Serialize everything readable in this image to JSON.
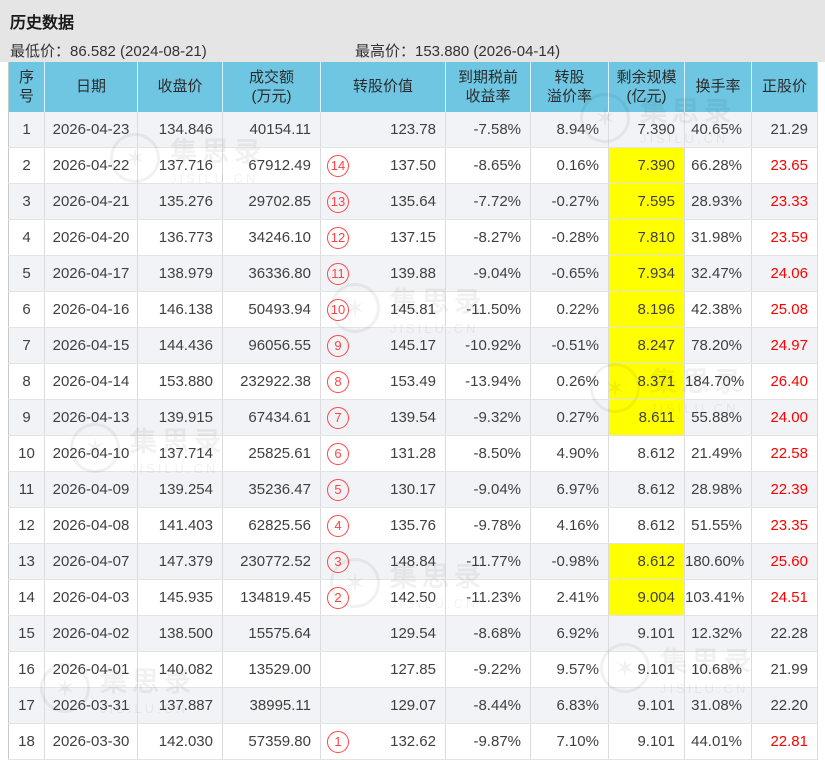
{
  "header": {
    "title": "历史数据",
    "min_price_label": "最低价：86.582 (2024-08-21)",
    "max_price_label": "最高价：153.880 (2026-04-14)"
  },
  "watermark": {
    "brand": "集思录",
    "domain": "JISILU.CN",
    "logo_glyph": "✶"
  },
  "table": {
    "columns": [
      {
        "key": "no",
        "label": "序\n号"
      },
      {
        "key": "date",
        "label": "日期"
      },
      {
        "key": "close",
        "label": "收盘价"
      },
      {
        "key": "volume",
        "label": "成交额\n(万元)"
      },
      {
        "key": "conv_value",
        "label": "转股价值"
      },
      {
        "key": "ytm",
        "label": "到期税前\n收益率"
      },
      {
        "key": "premium",
        "label": "转股\n溢价率"
      },
      {
        "key": "size",
        "label": "剩余规模\n(亿元)"
      },
      {
        "key": "turnover",
        "label": "换手率"
      },
      {
        "key": "price",
        "label": "正股价"
      }
    ],
    "rows": [
      {
        "no": "1",
        "date": "2026-04-23",
        "close": "134.846",
        "volume": "40154.11",
        "badge": "",
        "conv_value": "123.78",
        "ytm": "-7.58%",
        "premium": "8.94%",
        "size": "7.390",
        "size_highlight": false,
        "turnover": "40.65%",
        "price": "21.29",
        "price_red": false
      },
      {
        "no": "2",
        "date": "2026-04-22",
        "close": "137.716",
        "volume": "67912.49",
        "badge": "14",
        "conv_value": "137.50",
        "ytm": "-8.65%",
        "premium": "0.16%",
        "size": "7.390",
        "size_highlight": true,
        "turnover": "66.28%",
        "price": "23.65",
        "price_red": true
      },
      {
        "no": "3",
        "date": "2026-04-21",
        "close": "135.276",
        "volume": "29702.85",
        "badge": "13",
        "conv_value": "135.64",
        "ytm": "-7.72%",
        "premium": "-0.27%",
        "size": "7.595",
        "size_highlight": true,
        "turnover": "28.93%",
        "price": "23.33",
        "price_red": true
      },
      {
        "no": "4",
        "date": "2026-04-20",
        "close": "136.773",
        "volume": "34246.10",
        "badge": "12",
        "conv_value": "137.15",
        "ytm": "-8.27%",
        "premium": "-0.28%",
        "size": "7.810",
        "size_highlight": true,
        "turnover": "31.98%",
        "price": "23.59",
        "price_red": true
      },
      {
        "no": "5",
        "date": "2026-04-17",
        "close": "138.979",
        "volume": "36336.80",
        "badge": "11",
        "conv_value": "139.88",
        "ytm": "-9.04%",
        "premium": "-0.65%",
        "size": "7.934",
        "size_highlight": true,
        "turnover": "32.47%",
        "price": "24.06",
        "price_red": true
      },
      {
        "no": "6",
        "date": "2026-04-16",
        "close": "146.138",
        "volume": "50493.94",
        "badge": "10",
        "conv_value": "145.81",
        "ytm": "-11.50%",
        "premium": "0.22%",
        "size": "8.196",
        "size_highlight": true,
        "turnover": "42.38%",
        "price": "25.08",
        "price_red": true
      },
      {
        "no": "7",
        "date": "2026-04-15",
        "close": "144.436",
        "volume": "96056.55",
        "badge": "9",
        "conv_value": "145.17",
        "ytm": "-10.92%",
        "premium": "-0.51%",
        "size": "8.247",
        "size_highlight": true,
        "turnover": "78.20%",
        "price": "24.97",
        "price_red": true
      },
      {
        "no": "8",
        "date": "2026-04-14",
        "close": "153.880",
        "volume": "232922.38",
        "badge": "8",
        "conv_value": "153.49",
        "ytm": "-13.94%",
        "premium": "0.26%",
        "size": "8.371",
        "size_highlight": true,
        "turnover": "184.70%",
        "price": "26.40",
        "price_red": true
      },
      {
        "no": "9",
        "date": "2026-04-13",
        "close": "139.915",
        "volume": "67434.61",
        "badge": "7",
        "conv_value": "139.54",
        "ytm": "-9.32%",
        "premium": "0.27%",
        "size": "8.611",
        "size_highlight": true,
        "turnover": "55.88%",
        "price": "24.00",
        "price_red": true
      },
      {
        "no": "10",
        "date": "2026-04-10",
        "close": "137.714",
        "volume": "25825.61",
        "badge": "6",
        "conv_value": "131.28",
        "ytm": "-8.50%",
        "premium": "4.90%",
        "size": "8.612",
        "size_highlight": false,
        "turnover": "21.49%",
        "price": "22.58",
        "price_red": true
      },
      {
        "no": "11",
        "date": "2026-04-09",
        "close": "139.254",
        "volume": "35236.47",
        "badge": "5",
        "conv_value": "130.17",
        "ytm": "-9.04%",
        "premium": "6.97%",
        "size": "8.612",
        "size_highlight": false,
        "turnover": "28.98%",
        "price": "22.39",
        "price_red": true
      },
      {
        "no": "12",
        "date": "2026-04-08",
        "close": "141.403",
        "volume": "62825.56",
        "badge": "4",
        "conv_value": "135.76",
        "ytm": "-9.78%",
        "premium": "4.16%",
        "size": "8.612",
        "size_highlight": false,
        "turnover": "51.55%",
        "price": "23.35",
        "price_red": true
      },
      {
        "no": "13",
        "date": "2026-04-07",
        "close": "147.379",
        "volume": "230772.52",
        "badge": "3",
        "conv_value": "148.84",
        "ytm": "-11.77%",
        "premium": "-0.98%",
        "size": "8.612",
        "size_highlight": true,
        "turnover": "180.60%",
        "price": "25.60",
        "price_red": true
      },
      {
        "no": "14",
        "date": "2026-04-03",
        "close": "145.935",
        "volume": "134819.45",
        "badge": "2",
        "conv_value": "142.50",
        "ytm": "-11.23%",
        "premium": "2.41%",
        "size": "9.004",
        "size_highlight": true,
        "turnover": "103.41%",
        "price": "24.51",
        "price_red": true
      },
      {
        "no": "15",
        "date": "2026-04-02",
        "close": "138.500",
        "volume": "15575.64",
        "badge": "",
        "conv_value": "129.54",
        "ytm": "-8.68%",
        "premium": "6.92%",
        "size": "9.101",
        "size_highlight": false,
        "turnover": "12.32%",
        "price": "22.28",
        "price_red": false
      },
      {
        "no": "16",
        "date": "2026-04-01",
        "close": "140.082",
        "volume": "13529.00",
        "badge": "",
        "conv_value": "127.85",
        "ytm": "-9.22%",
        "premium": "9.57%",
        "size": "9.101",
        "size_highlight": false,
        "turnover": "10.68%",
        "price": "21.99",
        "price_red": false
      },
      {
        "no": "17",
        "date": "2026-03-31",
        "close": "137.887",
        "volume": "38995.11",
        "badge": "",
        "conv_value": "129.07",
        "ytm": "-8.44%",
        "premium": "6.83%",
        "size": "9.101",
        "size_highlight": false,
        "turnover": "31.08%",
        "price": "22.20",
        "price_red": false
      },
      {
        "no": "18",
        "date": "2026-03-30",
        "close": "142.030",
        "volume": "57359.80",
        "badge": "1",
        "conv_value": "132.62",
        "ytm": "-9.87%",
        "premium": "7.10%",
        "size": "9.101",
        "size_highlight": false,
        "turnover": "44.01%",
        "price": "22.81",
        "price_red": true
      }
    ]
  }
}
